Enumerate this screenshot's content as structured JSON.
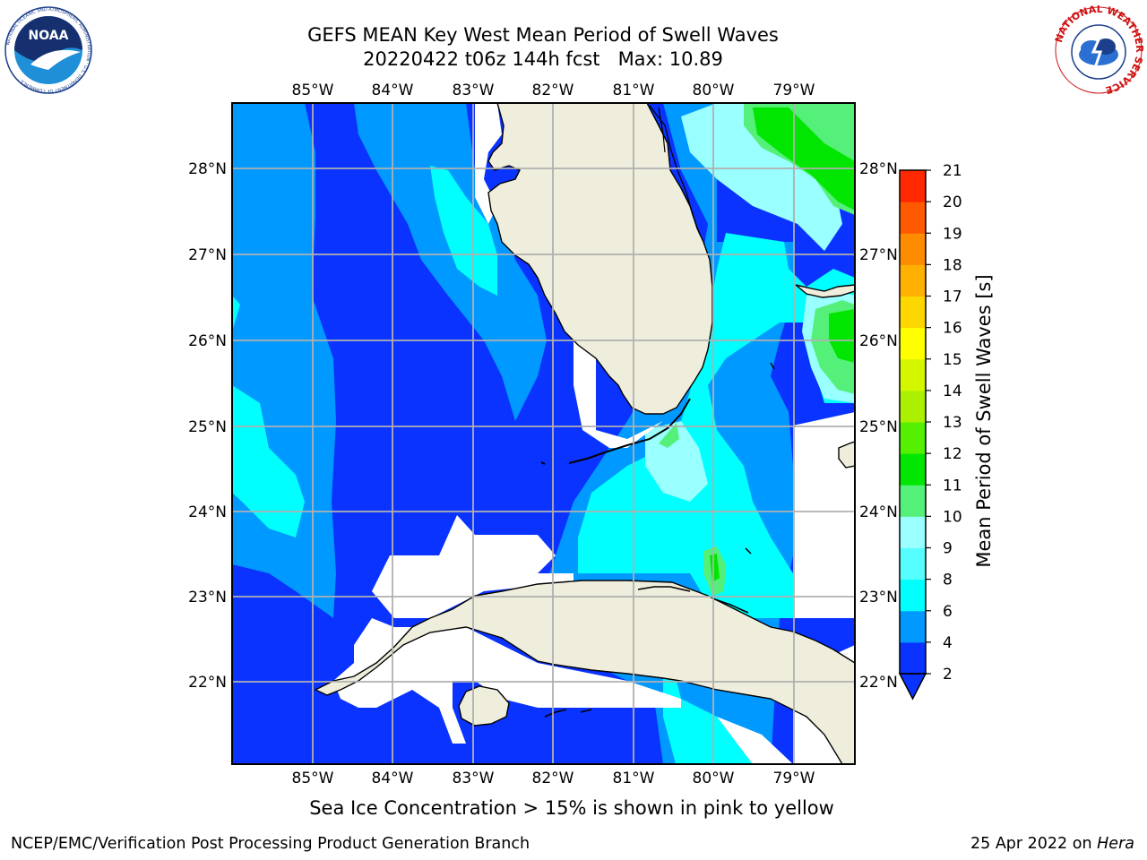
{
  "title": {
    "line1": "GEFS MEAN Key West Mean Period of Swell Waves",
    "line2": "20220422 t06z 144h fcst   Max: 10.89"
  },
  "map": {
    "lon_labels": [
      "85°W",
      "84°W",
      "83°W",
      "82°W",
      "81°W",
      "80°W",
      "79°W"
    ],
    "lat_labels": [
      "28°N",
      "27°N",
      "26°N",
      "25°N",
      "24°N",
      "23°N",
      "22°N"
    ],
    "colors": {
      "land": "#efeddc",
      "coast": "#000000",
      "grid": "#b0b0b0"
    }
  },
  "colorbar": {
    "label": "Mean Period of Swell Waves [s]",
    "ticks": [
      "2",
      "4",
      "6",
      "8",
      "9",
      "10",
      "11",
      "12",
      "13",
      "14",
      "15",
      "16",
      "17",
      "18",
      "19",
      "20",
      "21"
    ],
    "colors": [
      "#0a33ff",
      "#0099ff",
      "#00ffff",
      "#55ffff",
      "#99ffff",
      "#55f07a",
      "#00e600",
      "#55f000",
      "#aaf000",
      "#d4f700",
      "#ffff00",
      "#ffd700",
      "#ffb000",
      "#ff8c00",
      "#ff5a00",
      "#ff2800"
    ]
  },
  "note": "Sea Ice Concentration > 15% is shown in pink to yellow",
  "footer": {
    "left": "NCEP/EMC/Verification Post Processing Product Generation Branch",
    "right_prefix": "25 Apr 2022 on",
    "right_host": "Hera"
  },
  "logos": {
    "noaa_text": "NOAA",
    "noaa_ring": "NATIONAL OCEANIC AND ATMOSPHERIC ADMINISTRATION · U.S. DEPARTMENT OF COMMERCE",
    "nws_ring": "NATIONAL WEATHER SERVICE"
  }
}
